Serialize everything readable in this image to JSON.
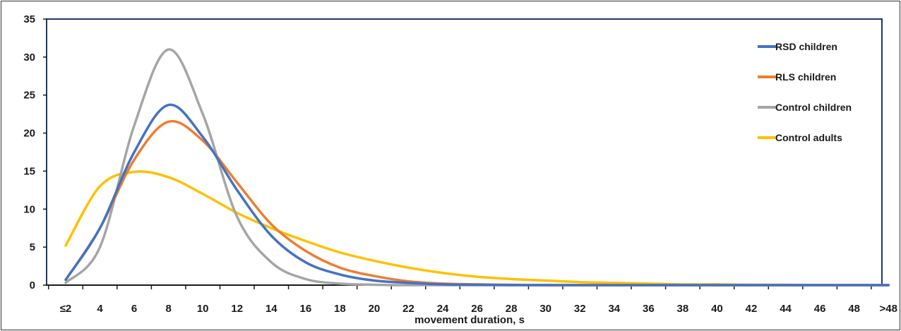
{
  "chart_data": {
    "type": "line",
    "title": "",
    "xlabel": "movement duration, s",
    "ylabel": "",
    "ylim": [
      0,
      35
    ],
    "yticks": [
      0,
      5,
      10,
      15,
      20,
      25,
      30,
      35
    ],
    "categories": [
      "≤2",
      "4",
      "6",
      "8",
      "10",
      "12",
      "14",
      "16",
      "18",
      "20",
      "22",
      "24",
      "26",
      "28",
      "30",
      "32",
      "34",
      "36",
      "38",
      "40",
      "42",
      "44",
      "46",
      "48",
      ">48"
    ],
    "grid": false,
    "legend_position": "right",
    "series": [
      {
        "name": "RSD children",
        "color": "#4472C4",
        "values": [
          0.7,
          7.5,
          17.5,
          23.7,
          19.5,
          12.5,
          6.5,
          3.0,
          1.4,
          0.6,
          0.3,
          0.1,
          0.05,
          0,
          0,
          0,
          0,
          0,
          0,
          0,
          0,
          0,
          0,
          0,
          0
        ]
      },
      {
        "name": "RLS children",
        "color": "#ED7D31",
        "values": [
          0.7,
          7.5,
          16.5,
          21.5,
          19.0,
          13.5,
          8.0,
          4.5,
          2.3,
          1.2,
          0.5,
          0.2,
          0.1,
          0.05,
          0,
          0,
          0,
          0,
          0,
          0,
          0,
          0,
          0,
          0,
          0
        ]
      },
      {
        "name": "Control children",
        "color": "#A5A5A5",
        "values": [
          0.3,
          5.0,
          21.0,
          31.0,
          22.5,
          9.0,
          3.0,
          0.8,
          0.2,
          0.05,
          0,
          0,
          0,
          0,
          0,
          0,
          0,
          0,
          0,
          0,
          0,
          0,
          0,
          0,
          0
        ]
      },
      {
        "name": "Control adults",
        "color": "#FFC000",
        "values": [
          5.2,
          13.0,
          14.9,
          14.2,
          12.0,
          9.5,
          7.5,
          5.8,
          4.3,
          3.2,
          2.3,
          1.6,
          1.1,
          0.8,
          0.6,
          0.4,
          0.3,
          0.2,
          0.1,
          0.1,
          0.05,
          0.05,
          0,
          0,
          0
        ]
      }
    ]
  }
}
